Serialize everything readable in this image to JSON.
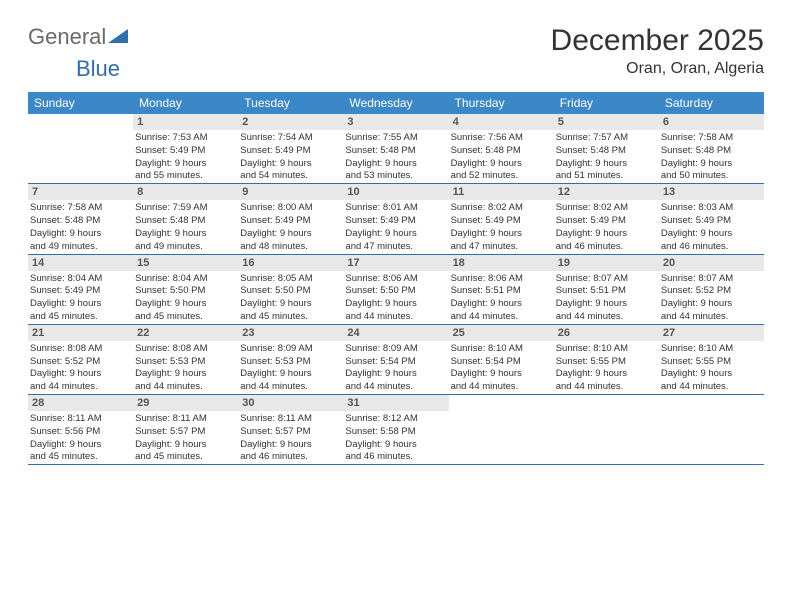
{
  "logo": {
    "part1": "General",
    "part2": "Blue"
  },
  "title": "December 2025",
  "location": "Oran, Oran, Algeria",
  "colors": {
    "header_bg": "#3b87c8",
    "header_text": "#ffffff",
    "row_divider": "#2f6fb0",
    "daynum_bg": "#e8e8e8",
    "logo_gray": "#6a6a6a",
    "logo_blue": "#2f6fb0"
  },
  "weekdays": [
    "Sunday",
    "Monday",
    "Tuesday",
    "Wednesday",
    "Thursday",
    "Friday",
    "Saturday"
  ],
  "weeks": [
    [
      {
        "day": "",
        "lines": []
      },
      {
        "day": "1",
        "lines": [
          "Sunrise: 7:53 AM",
          "Sunset: 5:49 PM",
          "Daylight: 9 hours",
          "and 55 minutes."
        ]
      },
      {
        "day": "2",
        "lines": [
          "Sunrise: 7:54 AM",
          "Sunset: 5:49 PM",
          "Daylight: 9 hours",
          "and 54 minutes."
        ]
      },
      {
        "day": "3",
        "lines": [
          "Sunrise: 7:55 AM",
          "Sunset: 5:48 PM",
          "Daylight: 9 hours",
          "and 53 minutes."
        ]
      },
      {
        "day": "4",
        "lines": [
          "Sunrise: 7:56 AM",
          "Sunset: 5:48 PM",
          "Daylight: 9 hours",
          "and 52 minutes."
        ]
      },
      {
        "day": "5",
        "lines": [
          "Sunrise: 7:57 AM",
          "Sunset: 5:48 PM",
          "Daylight: 9 hours",
          "and 51 minutes."
        ]
      },
      {
        "day": "6",
        "lines": [
          "Sunrise: 7:58 AM",
          "Sunset: 5:48 PM",
          "Daylight: 9 hours",
          "and 50 minutes."
        ]
      }
    ],
    [
      {
        "day": "7",
        "lines": [
          "Sunrise: 7:58 AM",
          "Sunset: 5:48 PM",
          "Daylight: 9 hours",
          "and 49 minutes."
        ]
      },
      {
        "day": "8",
        "lines": [
          "Sunrise: 7:59 AM",
          "Sunset: 5:48 PM",
          "Daylight: 9 hours",
          "and 49 minutes."
        ]
      },
      {
        "day": "9",
        "lines": [
          "Sunrise: 8:00 AM",
          "Sunset: 5:49 PM",
          "Daylight: 9 hours",
          "and 48 minutes."
        ]
      },
      {
        "day": "10",
        "lines": [
          "Sunrise: 8:01 AM",
          "Sunset: 5:49 PM",
          "Daylight: 9 hours",
          "and 47 minutes."
        ]
      },
      {
        "day": "11",
        "lines": [
          "Sunrise: 8:02 AM",
          "Sunset: 5:49 PM",
          "Daylight: 9 hours",
          "and 47 minutes."
        ]
      },
      {
        "day": "12",
        "lines": [
          "Sunrise: 8:02 AM",
          "Sunset: 5:49 PM",
          "Daylight: 9 hours",
          "and 46 minutes."
        ]
      },
      {
        "day": "13",
        "lines": [
          "Sunrise: 8:03 AM",
          "Sunset: 5:49 PM",
          "Daylight: 9 hours",
          "and 46 minutes."
        ]
      }
    ],
    [
      {
        "day": "14",
        "lines": [
          "Sunrise: 8:04 AM",
          "Sunset: 5:49 PM",
          "Daylight: 9 hours",
          "and 45 minutes."
        ]
      },
      {
        "day": "15",
        "lines": [
          "Sunrise: 8:04 AM",
          "Sunset: 5:50 PM",
          "Daylight: 9 hours",
          "and 45 minutes."
        ]
      },
      {
        "day": "16",
        "lines": [
          "Sunrise: 8:05 AM",
          "Sunset: 5:50 PM",
          "Daylight: 9 hours",
          "and 45 minutes."
        ]
      },
      {
        "day": "17",
        "lines": [
          "Sunrise: 8:06 AM",
          "Sunset: 5:50 PM",
          "Daylight: 9 hours",
          "and 44 minutes."
        ]
      },
      {
        "day": "18",
        "lines": [
          "Sunrise: 8:06 AM",
          "Sunset: 5:51 PM",
          "Daylight: 9 hours",
          "and 44 minutes."
        ]
      },
      {
        "day": "19",
        "lines": [
          "Sunrise: 8:07 AM",
          "Sunset: 5:51 PM",
          "Daylight: 9 hours",
          "and 44 minutes."
        ]
      },
      {
        "day": "20",
        "lines": [
          "Sunrise: 8:07 AM",
          "Sunset: 5:52 PM",
          "Daylight: 9 hours",
          "and 44 minutes."
        ]
      }
    ],
    [
      {
        "day": "21",
        "lines": [
          "Sunrise: 8:08 AM",
          "Sunset: 5:52 PM",
          "Daylight: 9 hours",
          "and 44 minutes."
        ]
      },
      {
        "day": "22",
        "lines": [
          "Sunrise: 8:08 AM",
          "Sunset: 5:53 PM",
          "Daylight: 9 hours",
          "and 44 minutes."
        ]
      },
      {
        "day": "23",
        "lines": [
          "Sunrise: 8:09 AM",
          "Sunset: 5:53 PM",
          "Daylight: 9 hours",
          "and 44 minutes."
        ]
      },
      {
        "day": "24",
        "lines": [
          "Sunrise: 8:09 AM",
          "Sunset: 5:54 PM",
          "Daylight: 9 hours",
          "and 44 minutes."
        ]
      },
      {
        "day": "25",
        "lines": [
          "Sunrise: 8:10 AM",
          "Sunset: 5:54 PM",
          "Daylight: 9 hours",
          "and 44 minutes."
        ]
      },
      {
        "day": "26",
        "lines": [
          "Sunrise: 8:10 AM",
          "Sunset: 5:55 PM",
          "Daylight: 9 hours",
          "and 44 minutes."
        ]
      },
      {
        "day": "27",
        "lines": [
          "Sunrise: 8:10 AM",
          "Sunset: 5:55 PM",
          "Daylight: 9 hours",
          "and 44 minutes."
        ]
      }
    ],
    [
      {
        "day": "28",
        "lines": [
          "Sunrise: 8:11 AM",
          "Sunset: 5:56 PM",
          "Daylight: 9 hours",
          "and 45 minutes."
        ]
      },
      {
        "day": "29",
        "lines": [
          "Sunrise: 8:11 AM",
          "Sunset: 5:57 PM",
          "Daylight: 9 hours",
          "and 45 minutes."
        ]
      },
      {
        "day": "30",
        "lines": [
          "Sunrise: 8:11 AM",
          "Sunset: 5:57 PM",
          "Daylight: 9 hours",
          "and 46 minutes."
        ]
      },
      {
        "day": "31",
        "lines": [
          "Sunrise: 8:12 AM",
          "Sunset: 5:58 PM",
          "Daylight: 9 hours",
          "and 46 minutes."
        ]
      },
      {
        "day": "",
        "lines": []
      },
      {
        "day": "",
        "lines": []
      },
      {
        "day": "",
        "lines": []
      }
    ]
  ]
}
